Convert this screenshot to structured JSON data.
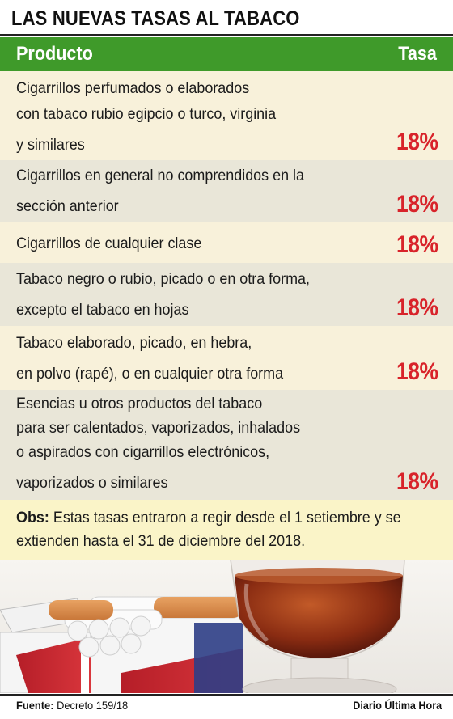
{
  "title": "LAS NUEVAS TASAS AL TABACO",
  "header": {
    "product": "Producto",
    "rate": "Tasa"
  },
  "rows": [
    {
      "lines": [
        "Cigarrillos perfumados o elaborados",
        "con tabaco rubio egipcio o turco, virginia",
        "y similares"
      ],
      "rate": "18%"
    },
    {
      "lines": [
        "Cigarrillos en general no comprendidos en la",
        "sección anterior"
      ],
      "rate": "18%"
    },
    {
      "lines": [
        "Cigarrillos de cualquier clase"
      ],
      "rate": "18%"
    },
    {
      "lines": [
        "Tabaco negro o rubio, picado o en otra forma,",
        "excepto el tabaco en hojas"
      ],
      "rate": "18%"
    },
    {
      "lines": [
        "Tabaco elaborado, picado, en hebra,",
        "en polvo (rapé), o en cualquier otra forma"
      ],
      "rate": "18%"
    },
    {
      "lines": [
        "Esencias u otros productos del tabaco",
        "para ser calentados, vaporizados, inhalados",
        "o aspirados con cigarrillos electrónicos,",
        "vaporizados o similares"
      ],
      "rate": "18%"
    }
  ],
  "obs": {
    "label": "Obs:",
    "text": " Estas tasas entraron a regir desde el 1 setiembre y se extienden hasta el 31 de diciembre del 2018."
  },
  "footer": {
    "source_label": "Fuente:",
    "source_value": " Decreto 159/18",
    "brand": "Diario Última Hora"
  },
  "colors": {
    "header_green": "#3f9a2a",
    "rate_red": "#d8232a",
    "row_light": "#f8f1da",
    "row_dark": "#e9e6d8",
    "obs_bg": "#faf4c8"
  }
}
